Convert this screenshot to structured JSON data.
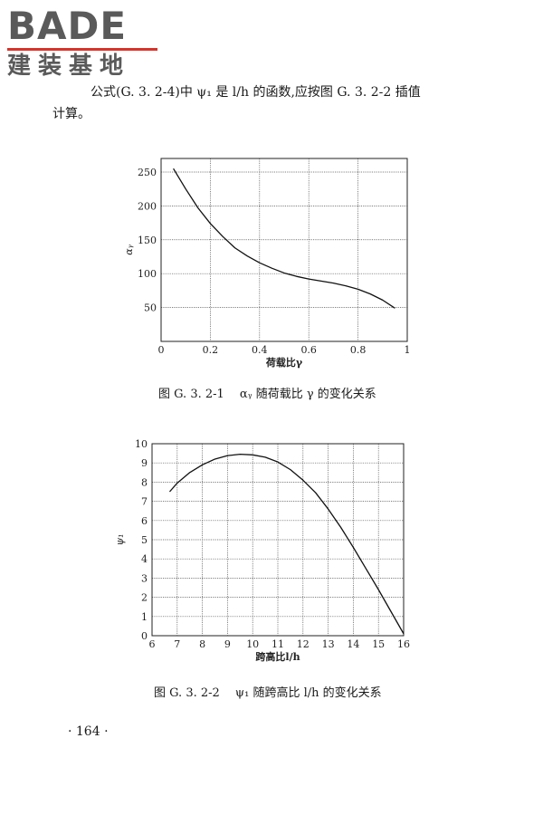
{
  "header": {
    "logo_top": "BADE",
    "logo_bottom": "建装基地"
  },
  "paragraph": {
    "line1": "公式(G. 3. 2-4)中 ψ₁ 是 l/h 的函数,应按图 G. 3. 2-2 插值",
    "line2": "计算。"
  },
  "figures": [
    {
      "caption": "图 G. 3. 2-1　 αᵧ 随荷载比 γ 的变化关系"
    },
    {
      "caption": "图 G. 3. 2-2　 ψ₁ 随跨高比 l/h 的变化关系"
    }
  ],
  "page_number": "· 164 ·",
  "chart_data": [
    {
      "type": "line",
      "title": "",
      "xlabel": "荷载比γ",
      "ylabel": "αᵧ",
      "xlim": [
        0,
        1
      ],
      "ylim": [
        0,
        270
      ],
      "x_ticks": [
        0,
        0.2,
        0.4,
        0.6,
        0.8,
        1
      ],
      "x_tick_labels": [
        "0",
        "0.2",
        "0.4",
        "0.6",
        "0.8",
        "1"
      ],
      "y_ticks": [
        50,
        100,
        150,
        200,
        250
      ],
      "y_tick_labels": [
        "50",
        "100",
        "150",
        "200",
        "250"
      ],
      "grid": true,
      "series": [
        {
          "x": [
            0.05,
            0.1,
            0.15,
            0.2,
            0.25,
            0.3,
            0.35,
            0.4,
            0.45,
            0.5,
            0.55,
            0.6,
            0.65,
            0.7,
            0.75,
            0.8,
            0.85,
            0.9,
            0.95
          ],
          "y": [
            255,
            225,
            197,
            174,
            155,
            138,
            126,
            116,
            108,
            101,
            96,
            92,
            89,
            86,
            82,
            77,
            70,
            61,
            49
          ]
        }
      ]
    },
    {
      "type": "line",
      "title": "",
      "xlabel": "跨高比l/h",
      "ylabel": "ψ₁",
      "xlim": [
        6,
        16
      ],
      "ylim": [
        0,
        10
      ],
      "x_ticks": [
        6,
        7,
        8,
        9,
        10,
        11,
        12,
        13,
        14,
        15,
        16
      ],
      "x_tick_labels": [
        "6",
        "7",
        "8",
        "9",
        "10",
        "11",
        "12",
        "13",
        "14",
        "15",
        "16"
      ],
      "y_ticks": [
        0,
        1,
        2,
        3,
        4,
        5,
        6,
        7,
        8,
        9,
        10
      ],
      "y_tick_labels": [
        "0",
        "1",
        "2",
        "3",
        "4",
        "5",
        "6",
        "7",
        "8",
        "9",
        "10"
      ],
      "grid": true,
      "series": [
        {
          "x": [
            6.7,
            7,
            7.5,
            8,
            8.5,
            9,
            9.5,
            10,
            10.5,
            11,
            11.5,
            12,
            12.5,
            13,
            13.5,
            14,
            14.5,
            15,
            15.5,
            16
          ],
          "y": [
            7.5,
            7.95,
            8.5,
            8.9,
            9.2,
            9.38,
            9.45,
            9.42,
            9.3,
            9.05,
            8.65,
            8.1,
            7.45,
            6.6,
            5.65,
            4.6,
            3.5,
            2.4,
            1.25,
            0.1
          ]
        }
      ]
    }
  ]
}
